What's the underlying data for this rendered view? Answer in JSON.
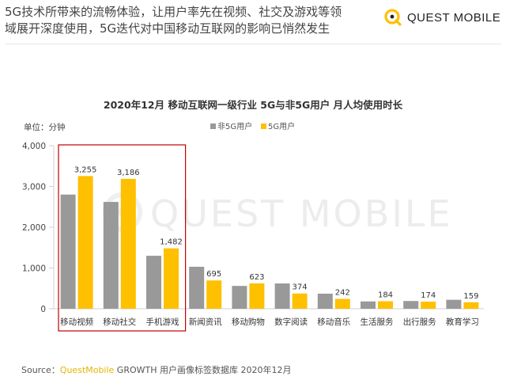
{
  "headline": {
    "line1": "5G技术所带来的流畅体验，让用户率先在视频、社交及游戏等领",
    "line2": "域展开深度使用，5G迭代对中国移动互联网的影响已悄然发生"
  },
  "logo": {
    "brand": "QUEST MOBILE"
  },
  "watermark": "QUEST MOBILE",
  "source": {
    "label": "Source：",
    "brand": "QuestMobile",
    "text": " GROWTH 用户画像标签数据库  2020年12月"
  },
  "colors": {
    "non5g": "#999999",
    "g5": "#ffc000",
    "highlight": "#c00000",
    "brand": "#e8b500"
  },
  "chart_data": {
    "type": "bar",
    "title": "2020年12月 移动互联网一级行业 5G与非5G用户 月人均使用时长",
    "unit_label": "单位：分钟",
    "ylim": [
      0,
      4000
    ],
    "yticks": [
      0,
      1000,
      2000,
      3000,
      4000
    ],
    "ytick_labels": [
      "0",
      "1,000",
      "2,000",
      "3,000",
      "4,000"
    ],
    "categories": [
      "移动视频",
      "移动社交",
      "手机游戏",
      "新闻资讯",
      "移动购物",
      "数字阅读",
      "移动音乐",
      "生活服务",
      "出行服务",
      "教育学习"
    ],
    "series": [
      {
        "name": "非5G用户",
        "color": "#999999",
        "values": [
          2800,
          2620,
          1300,
          1030,
          560,
          620,
          370,
          180,
          190,
          220
        ],
        "labels": [
          "",
          "",
          "",
          "",
          "",
          "",
          "",
          "",
          "",
          ""
        ]
      },
      {
        "name": "5G用户",
        "color": "#ffc000",
        "values": [
          3255,
          3186,
          1482,
          695,
          623,
          374,
          242,
          184,
          174,
          159
        ],
        "labels": [
          "3,255",
          "3,186",
          "1,482",
          "695",
          "623",
          "374",
          "242",
          "184",
          "174",
          "159"
        ]
      }
    ],
    "legend_position": "top-center",
    "highlighted_categories": [
      "移动视频",
      "移动社交",
      "手机游戏"
    ]
  }
}
